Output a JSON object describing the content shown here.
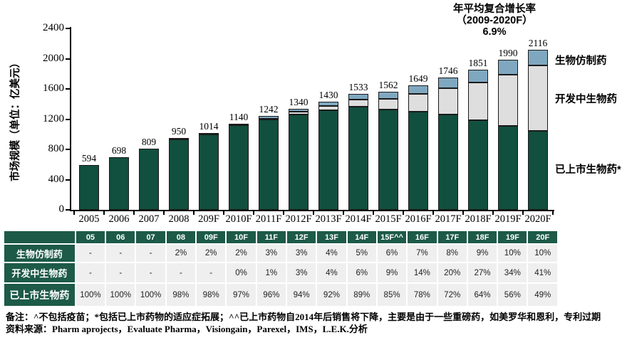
{
  "chart_data": {
    "type": "bar",
    "stacked": true,
    "title": "年平均复合增长率（2009-2020F）6.9%",
    "ylabel": "市场规模（单位：亿美元）",
    "ylim": [
      0,
      2400
    ],
    "ytick_step": 400,
    "grid": false,
    "legend_position": "right",
    "categories": [
      "2005",
      "2006",
      "2007",
      "2008",
      "209F",
      "2010F",
      "2011F",
      "2012F",
      "2013F",
      "2014F",
      "2015F",
      "2016F",
      "2017F",
      "2018F",
      "2019F",
      "2020F"
    ],
    "totals": [
      594,
      698,
      809,
      950,
      1014,
      1140,
      1242,
      1340,
      1430,
      1533,
      1562,
      1649,
      1746,
      1851,
      1990,
      2116
    ],
    "series": [
      {
        "name": "已上市生物药",
        "color": "#114f3e",
        "pct": [
          100,
          100,
          100,
          98,
          98,
          97,
          96,
          94,
          92,
          89,
          85,
          78,
          72,
          64,
          56,
          49
        ]
      },
      {
        "name": "开发中生物药",
        "color": "#dedede",
        "pct": [
          0,
          0,
          0,
          0,
          0,
          0,
          1,
          3,
          4,
          6,
          9,
          14,
          20,
          27,
          34,
          41
        ]
      },
      {
        "name": "生物仿制药",
        "color": "#7fa8c0",
        "pct": [
          0,
          0,
          0,
          2,
          2,
          2,
          3,
          3,
          4,
          5,
          6,
          7,
          8,
          9,
          10,
          10
        ]
      }
    ]
  },
  "annotation": {
    "line1": "年平均复合增长率",
    "line2": "（2009-2020F）",
    "line3": "6.9%"
  },
  "legend": {
    "items": [
      "生物仿制药",
      "开发中生物药",
      "已上市生物药*"
    ]
  },
  "table": {
    "headers": [
      "",
      "05",
      "06",
      "07",
      "08",
      "09F",
      "10F",
      "11F",
      "12F",
      "13F",
      "14F",
      "15F^^",
      "16F",
      "17F",
      "18F",
      "19F",
      "20F"
    ],
    "rows": [
      {
        "label": "生物仿制药",
        "values": [
          "-",
          "-",
          "-",
          "2%",
          "2%",
          "2%",
          "3%",
          "3%",
          "4%",
          "5%",
          "6%",
          "7%",
          "8%",
          "9%",
          "10%",
          "10%"
        ]
      },
      {
        "label": "开发中生物药",
        "values": [
          "-",
          "-",
          "-",
          "-",
          "-",
          "0%",
          "1%",
          "3%",
          "4%",
          "6%",
          "9%",
          "14%",
          "20%",
          "27%",
          "34%",
          "41%"
        ]
      },
      {
        "label": "已上市生物药",
        "values": [
          "100%",
          "100%",
          "100%",
          "98%",
          "98%",
          "97%",
          "96%",
          "94%",
          "92%",
          "89%",
          "85%",
          "78%",
          "72%",
          "64%",
          "56%",
          "49%"
        ]
      }
    ]
  },
  "footer": {
    "note": "备注：^不包括疫苗；*包括已上市药物的适应症拓展；^^已上市药物自2014年后销售将下降，主要是由于一些重磅药，如美罗华和恩利，专利过期",
    "source": "资料来源：Pharm aprojects，Evaluate Pharma，Visiongain，Parexel，IMS，L.E.K.分析"
  }
}
